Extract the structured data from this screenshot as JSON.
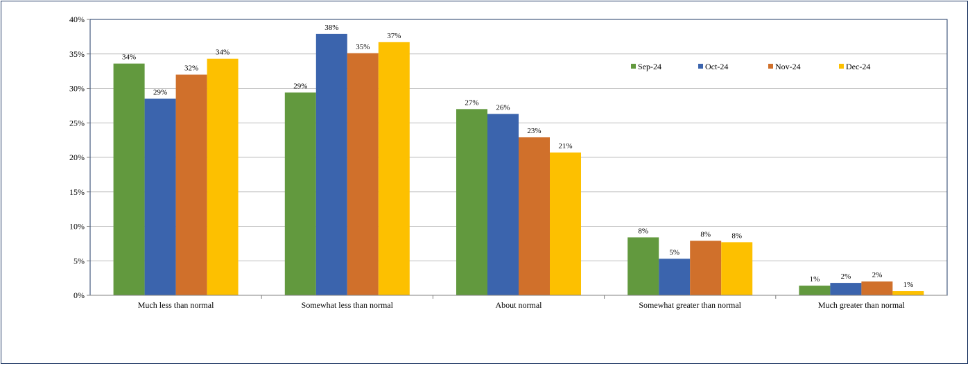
{
  "chart_data": {
    "type": "bar",
    "categories": [
      "Much less than normal",
      "Somewhat less than normal",
      "About normal",
      "Somewhat greater than normal",
      "Much greater than normal"
    ],
    "series": [
      {
        "name": "Sep-24",
        "color": "#62993e",
        "values": [
          33.6,
          29.4,
          27.0,
          8.4,
          1.4
        ],
        "labels": [
          "34%",
          "29%",
          "27%",
          "8%",
          "1%"
        ]
      },
      {
        "name": "Oct-24",
        "color": "#3b64ad",
        "values": [
          28.5,
          37.9,
          26.3,
          5.3,
          1.8
        ],
        "labels": [
          "29%",
          "38%",
          "26%",
          "5%",
          "2%"
        ]
      },
      {
        "name": "Nov-24",
        "color": "#d0702b",
        "values": [
          32.0,
          35.1,
          22.9,
          7.9,
          2.0
        ],
        "labels": [
          "32%",
          "35%",
          "23%",
          "8%",
          "2%"
        ]
      },
      {
        "name": "Dec-24",
        "color": "#fdc000",
        "values": [
          34.3,
          36.7,
          20.7,
          7.7,
          0.6
        ],
        "labels": [
          "34%",
          "37%",
          "21%",
          "8%",
          "1%"
        ]
      }
    ],
    "yticks": [
      "0%",
      "5%",
      "10%",
      "15%",
      "20%",
      "25%",
      "30%",
      "35%",
      "40%"
    ],
    "ylim": [
      0,
      40
    ],
    "title": "",
    "xlabel": "",
    "ylabel": "",
    "grid": true,
    "legend": "top-right"
  }
}
